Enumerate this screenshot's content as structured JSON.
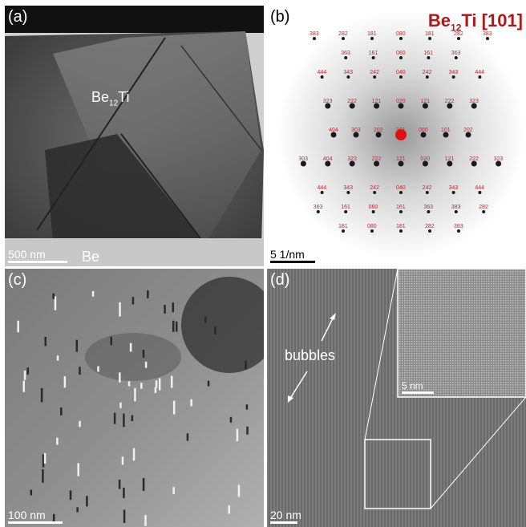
{
  "panels": {
    "a": {
      "label": "(a)",
      "phase_name": "Be",
      "phase_sub": "12",
      "phase_tail": "Ti",
      "matrix_label": "Be",
      "scale": "500 nm"
    },
    "b": {
      "label": "(b)",
      "title_main": "Be",
      "title_sub": "12",
      "title_tail": "Ti [101]",
      "scale": "5 1/nm",
      "spots": [
        "383",
        "282",
        "181",
        "080",
        "181",
        "282",
        "383",
        "363",
        "161",
        "060",
        "161",
        "363",
        "444",
        "343",
        "242",
        "040",
        "242",
        "343",
        "444",
        "323",
        "222",
        "121",
        "020",
        "121",
        "222",
        "323",
        "404",
        "303",
        "202",
        "101",
        "000",
        "101",
        "202",
        "303",
        "404",
        "323",
        "222",
        "121",
        "020",
        "121",
        "222",
        "323",
        "444",
        "343",
        "242",
        "040",
        "242",
        "343",
        "444",
        "363",
        "161",
        "060",
        "161",
        "363",
        "383",
        "282",
        "181",
        "080",
        "181",
        "282",
        "383"
      ]
    },
    "c": {
      "label": "(c)",
      "scale": "100 nm"
    },
    "d": {
      "label": "(d)",
      "annotation": "bubbles",
      "inset_scale": "5 nm",
      "scale": "20 nm"
    }
  },
  "colors": {
    "title_red": "#b01818",
    "spot_red": "#d42020"
  }
}
